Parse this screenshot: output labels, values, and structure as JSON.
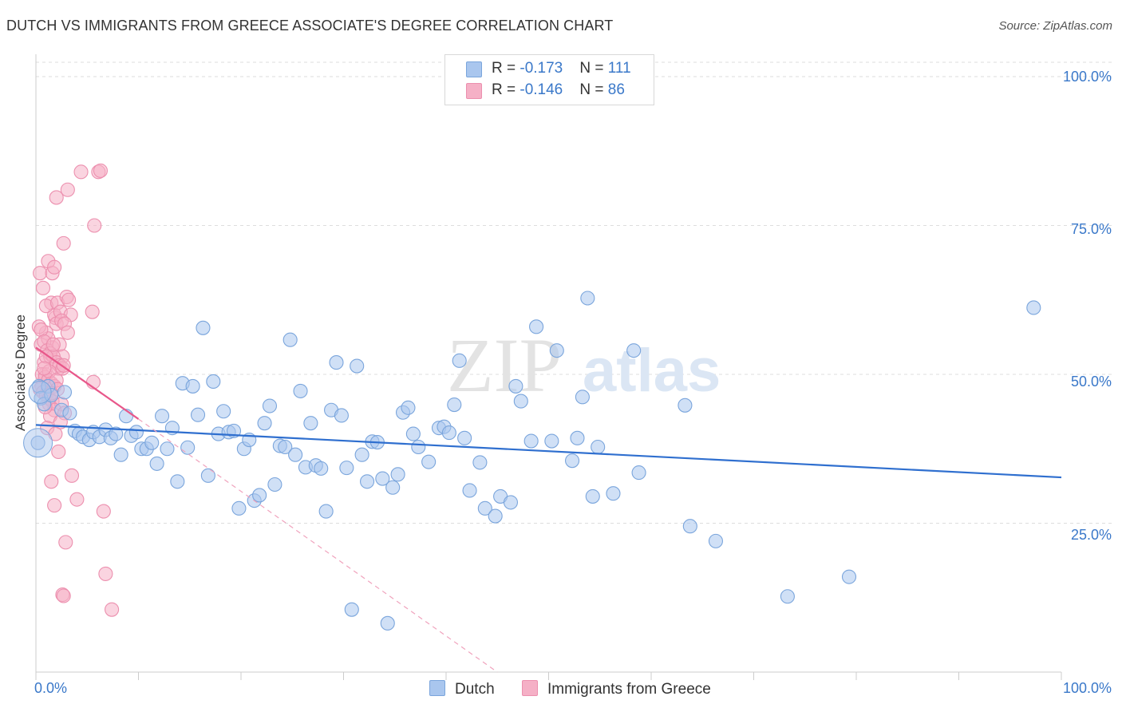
{
  "title": "DUTCH VS IMMIGRANTS FROM GREECE ASSOCIATE'S DEGREE CORRELATION CHART",
  "source": "Source: ZipAtlas.com",
  "legend": {
    "row1": {
      "r_label": "R = ",
      "r_value": "-0.173",
      "n_label": "N = ",
      "n_value": "111"
    },
    "row2": {
      "r_label": "R = ",
      "r_value": "-0.146",
      "n_label": "N = ",
      "n_value": "86"
    }
  },
  "colors": {
    "dutch": "#a9c6ee",
    "dutch_line": "#2f6fcf",
    "greece": "#f5b0c6",
    "greece_line": "#e8578a",
    "axis_text": "#3a78c9",
    "grid": "#dddddd"
  },
  "watermark": {
    "zip": "ZIP",
    "atlas": "atlas"
  },
  "chart_data": {
    "type": "scatter",
    "title": "DUTCH VS IMMIGRANTS FROM GREECE ASSOCIATE'S DEGREE CORRELATION CHART",
    "xlabel": "",
    "ylabel": "Associate's Degree",
    "xlim": [
      0,
      100
    ],
    "ylim": [
      0,
      102
    ],
    "x_tick_labels": [
      "0.0%",
      "100.0%"
    ],
    "y_ticks": [
      25,
      50,
      75,
      100
    ],
    "y_tick_labels": [
      "25.0%",
      "50.0%",
      "75.0%",
      "100.0%"
    ],
    "grid": true,
    "legend_position": "top-center",
    "series": [
      {
        "name": "Dutch",
        "color": "#a9c6ee",
        "r": -0.173,
        "n": 111,
        "trend": {
          "x": [
            0,
            100
          ],
          "y": [
            41.5,
            32.7
          ]
        },
        "points": [
          [
            0.3,
            48
          ],
          [
            0.5,
            46
          ],
          [
            0.8,
            45
          ],
          [
            1.2,
            48
          ],
          [
            1.5,
            46.5
          ],
          [
            2.5,
            44
          ],
          [
            2.8,
            47
          ],
          [
            3.3,
            43.5
          ],
          [
            3.8,
            40.5
          ],
          [
            4.2,
            40
          ],
          [
            4.6,
            39.5
          ],
          [
            5.2,
            39
          ],
          [
            5.6,
            40.3
          ],
          [
            6.2,
            39.5
          ],
          [
            6.8,
            40.7
          ],
          [
            7.3,
            39.3
          ],
          [
            7.8,
            40
          ],
          [
            8.3,
            36.5
          ],
          [
            8.8,
            43
          ],
          [
            9.3,
            39.7
          ],
          [
            9.8,
            40.3
          ],
          [
            10.3,
            37.5
          ],
          [
            10.8,
            37.5
          ],
          [
            11.3,
            38.5
          ],
          [
            11.8,
            35
          ],
          [
            12.3,
            43
          ],
          [
            12.8,
            37.5
          ],
          [
            13.3,
            41
          ],
          [
            13.8,
            32
          ],
          [
            14.3,
            48.5
          ],
          [
            14.8,
            37.7
          ],
          [
            15.3,
            48
          ],
          [
            15.8,
            43.2
          ],
          [
            16.3,
            57.8
          ],
          [
            16.8,
            33
          ],
          [
            17.3,
            48.8
          ],
          [
            17.8,
            40
          ],
          [
            18.3,
            43.8
          ],
          [
            18.8,
            40.3
          ],
          [
            19.3,
            40.5
          ],
          [
            19.8,
            27.5
          ],
          [
            20.3,
            37.5
          ],
          [
            20.8,
            39
          ],
          [
            21.3,
            28.8
          ],
          [
            21.8,
            29.7
          ],
          [
            22.3,
            41.8
          ],
          [
            22.8,
            44.7
          ],
          [
            23.3,
            31.5
          ],
          [
            23.8,
            38
          ],
          [
            24.3,
            37.8
          ],
          [
            24.8,
            55.8
          ],
          [
            25.3,
            36.5
          ],
          [
            25.8,
            47.2
          ],
          [
            26.3,
            34.4
          ],
          [
            26.8,
            41.8
          ],
          [
            27.3,
            34.7
          ],
          [
            27.8,
            34.2
          ],
          [
            28.3,
            27
          ],
          [
            28.8,
            44
          ],
          [
            29.3,
            52
          ],
          [
            29.8,
            43.1
          ],
          [
            30.3,
            34.3
          ],
          [
            30.8,
            10.5
          ],
          [
            31.3,
            51.4
          ],
          [
            31.8,
            36.5
          ],
          [
            32.3,
            32
          ],
          [
            32.8,
            38.7
          ],
          [
            33.3,
            38.6
          ],
          [
            33.8,
            32.5
          ],
          [
            34.3,
            8.2
          ],
          [
            34.8,
            31
          ],
          [
            35.3,
            33.2
          ],
          [
            35.8,
            43.6
          ],
          [
            36.3,
            44.4
          ],
          [
            36.8,
            40
          ],
          [
            37.3,
            37.8
          ],
          [
            38.3,
            35.3
          ],
          [
            39.3,
            41
          ],
          [
            39.8,
            41.2
          ],
          [
            40.3,
            40.2
          ],
          [
            40.8,
            44.9
          ],
          [
            41.3,
            52.3
          ],
          [
            41.8,
            39.3
          ],
          [
            42.3,
            30.5
          ],
          [
            43.3,
            35.2
          ],
          [
            43.8,
            27.5
          ],
          [
            44.8,
            26.2
          ],
          [
            45.3,
            29.5
          ],
          [
            46.3,
            28.5
          ],
          [
            46.8,
            48
          ],
          [
            47.3,
            45.5
          ],
          [
            48.3,
            38.8
          ],
          [
            48.8,
            58
          ],
          [
            50.3,
            38.8
          ],
          [
            50.8,
            54
          ],
          [
            52.3,
            35.5
          ],
          [
            52.8,
            39.3
          ],
          [
            53.3,
            46.2
          ],
          [
            53.8,
            62.8
          ],
          [
            54.3,
            29.5
          ],
          [
            54.8,
            37.8
          ],
          [
            56.3,
            30
          ],
          [
            58.3,
            54
          ],
          [
            58.8,
            33.5
          ],
          [
            63.3,
            44.8
          ],
          [
            63.8,
            24.5
          ],
          [
            66.3,
            22
          ],
          [
            73.3,
            12.7
          ],
          [
            79.3,
            16
          ],
          [
            97.3,
            61.2
          ],
          [
            0.2,
            38.5
          ]
        ]
      },
      {
        "name": "Immigrants from Greece",
        "color": "#f5b0c6",
        "r": -0.146,
        "n": 86,
        "trend": {
          "x": [
            0,
            10
          ],
          "y": [
            54.5,
            42.5
          ]
        },
        "trend_ext": {
          "x": [
            10,
            45
          ],
          "y": [
            42.5,
            0
          ]
        },
        "points": [
          [
            0.5,
            55
          ],
          [
            0.8,
            52
          ],
          [
            1,
            57
          ],
          [
            1.2,
            56
          ],
          [
            1.4,
            53
          ],
          [
            1.6,
            54.5
          ],
          [
            1.9,
            59.5
          ],
          [
            2.2,
            51
          ],
          [
            0.3,
            58
          ],
          [
            0.6,
            48
          ],
          [
            0.9,
            50
          ],
          [
            1.1,
            47
          ],
          [
            1.3,
            45
          ],
          [
            1.5,
            62
          ],
          [
            1.8,
            60
          ],
          [
            2,
            58.5
          ],
          [
            2.3,
            55
          ],
          [
            2.6,
            53
          ],
          [
            0.4,
            67
          ],
          [
            0.7,
            64.5
          ],
          [
            1,
            61.5
          ],
          [
            1.2,
            69
          ],
          [
            1.6,
            67
          ],
          [
            1.8,
            68
          ],
          [
            2.1,
            62
          ],
          [
            2.4,
            60.5
          ],
          [
            2.7,
            72
          ],
          [
            3,
            63
          ],
          [
            3.2,
            62.5
          ],
          [
            3.4,
            60
          ],
          [
            2.5,
            59
          ],
          [
            2.8,
            58.5
          ],
          [
            3.1,
            57
          ],
          [
            0.5,
            57.5
          ],
          [
            0.8,
            55.5
          ],
          [
            1.1,
            54
          ],
          [
            1.4,
            53.5
          ],
          [
            1.7,
            53
          ],
          [
            2,
            52
          ],
          [
            2.3,
            51.5
          ],
          [
            2.6,
            51
          ],
          [
            0.6,
            50
          ],
          [
            0.9,
            49.5
          ],
          [
            1.2,
            49
          ],
          [
            1.5,
            48.5
          ],
          [
            1.8,
            48
          ],
          [
            0.4,
            47.5
          ],
          [
            0.7,
            47
          ],
          [
            1,
            46.5
          ],
          [
            1.3,
            46
          ],
          [
            1.6,
            45.5
          ],
          [
            2.5,
            45
          ],
          [
            1.8,
            44
          ],
          [
            2.8,
            43.5
          ],
          [
            1.4,
            43
          ],
          [
            2.4,
            42
          ],
          [
            1.1,
            41
          ],
          [
            1.9,
            40
          ],
          [
            2.2,
            37
          ],
          [
            1.5,
            32
          ],
          [
            1.8,
            28
          ],
          [
            3.5,
            33
          ],
          [
            4,
            29
          ],
          [
            2.9,
            21.8
          ],
          [
            4.4,
            84
          ],
          [
            6.1,
            84
          ],
          [
            6.3,
            84.2
          ],
          [
            5.7,
            75
          ],
          [
            2,
            79.7
          ],
          [
            3.1,
            81
          ],
          [
            5.5,
            60.5
          ],
          [
            5.6,
            48.7
          ],
          [
            6.6,
            27
          ],
          [
            6.8,
            16.5
          ],
          [
            2.6,
            13
          ],
          [
            2.7,
            12.8
          ],
          [
            7.4,
            10.5
          ],
          [
            1.3,
            50.5
          ],
          [
            2,
            49
          ],
          [
            0.9,
            44.5
          ],
          [
            2.7,
            51.5
          ],
          [
            1.7,
            55
          ],
          [
            1,
            53
          ],
          [
            0.8,
            51
          ],
          [
            2.1,
            47.5
          ],
          [
            1.5,
            46.8
          ]
        ]
      }
    ]
  },
  "axis": {
    "y_ticks": [
      {
        "label": "100.0%",
        "value": 100
      },
      {
        "label": "75.0%",
        "value": 75
      },
      {
        "label": "50.0%",
        "value": 50
      },
      {
        "label": "25.0%",
        "value": 25
      }
    ],
    "x_left": "0.0%",
    "x_right": "100.0%",
    "y_label": "Associate's Degree"
  },
  "bottom_legend": {
    "dutch": "Dutch",
    "greece": "Immigrants from Greece"
  }
}
